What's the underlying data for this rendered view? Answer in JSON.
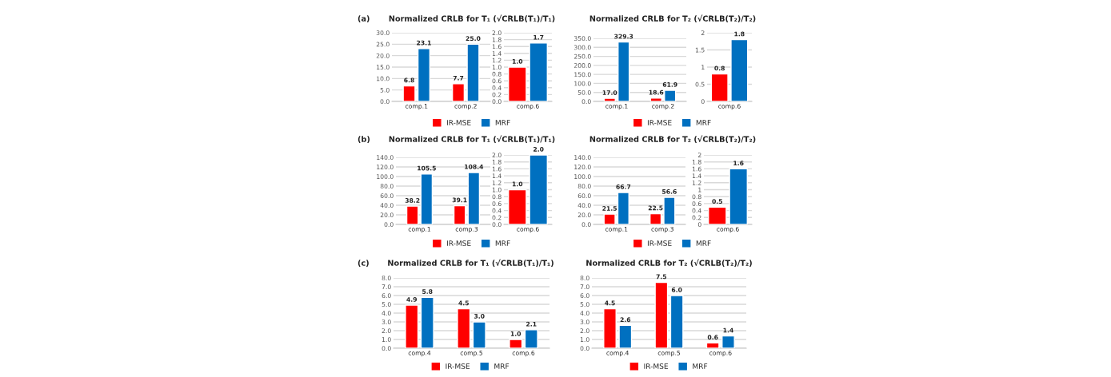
{
  "chart_data": [
    {
      "type": "bar",
      "title": "Normalized CRLB for T₁ (√CRLB(T₁)/T₁)",
      "annotations": [
        "(a)"
      ],
      "categories": [
        "comp.1",
        "comp.2"
      ],
      "series": [
        {
          "name": "IR-MSE",
          "color": "#ff0000",
          "values": [
            6.8,
            7.7
          ],
          "value_labels": [
            "6.8",
            "7.7"
          ]
        },
        {
          "name": "MRF",
          "color": "#0070c0",
          "values": [
            23.1,
            25
          ],
          "value_labels": [
            "23.1",
            "25.0"
          ]
        }
      ],
      "ylim": [
        0,
        30
      ],
      "yticks": [
        {
          "value": 0,
          "label": "0.0"
        },
        {
          "value": 5,
          "label": "5.0"
        },
        {
          "value": 10,
          "label": "10.0"
        },
        {
          "value": 15,
          "label": "15.0"
        },
        {
          "value": 20,
          "label": "20.0"
        },
        {
          "value": 25,
          "label": "25.0"
        },
        {
          "value": 30,
          "label": "30.0"
        }
      ],
      "grid": "y",
      "legend": "bottom"
    },
    {
      "type": "bar",
      "categories": [
        "comp.6"
      ],
      "series": [
        {
          "color": "#ff0000",
          "values": [
            1
          ],
          "value_labels": [
            "1.0"
          ]
        },
        {
          "color": "#0070c0",
          "values": [
            1.7
          ],
          "value_labels": [
            "1.7"
          ]
        }
      ],
      "ylim": [
        0,
        2
      ],
      "yticks": [
        {
          "value": 0,
          "label": "0.0"
        },
        {
          "value": 0.2,
          "label": "0.2"
        },
        {
          "value": 0.4,
          "label": "0.4"
        },
        {
          "value": 0.6,
          "label": "0.6"
        },
        {
          "value": 0.8,
          "label": "0.8"
        },
        {
          "value": 1,
          "label": "1.0"
        },
        {
          "value": 1.2,
          "label": "1.2"
        },
        {
          "value": 1.4,
          "label": "1.4"
        },
        {
          "value": 1.6,
          "label": "1.6"
        },
        {
          "value": 1.8,
          "label": "1.8"
        },
        {
          "value": 2,
          "label": "2.0"
        }
      ],
      "grid": "y"
    },
    {
      "type": "bar",
      "title": "Normalized CRLB for T₂ (√CRLB(T₂)/T₂)",
      "categories": [
        "comp.1",
        "comp.2"
      ],
      "series": [
        {
          "name": "IR-MSE",
          "color": "#ff0000",
          "values": [
            17,
            18.6
          ],
          "value_labels": [
            "17.0",
            "18.6"
          ]
        },
        {
          "name": "MRF",
          "color": "#0070c0",
          "values": [
            329.3,
            61.9
          ],
          "value_labels": [
            "329.3",
            "61.9"
          ]
        }
      ],
      "ylim": [
        0,
        350
      ],
      "yticks": [
        {
          "value": 0,
          "label": "0.0"
        },
        {
          "value": 50,
          "label": "50.0"
        },
        {
          "value": 100,
          "label": "100.0"
        },
        {
          "value": 150,
          "label": "150.0"
        },
        {
          "value": 200,
          "label": "200.0"
        },
        {
          "value": 250,
          "label": "250.0"
        },
        {
          "value": 300,
          "label": "300.0"
        },
        {
          "value": 350,
          "label": "350.0"
        }
      ],
      "grid": "y",
      "legend": "bottom"
    },
    {
      "type": "bar",
      "categories": [
        "comp.6"
      ],
      "series": [
        {
          "color": "#ff0000",
          "values": [
            0.8
          ],
          "value_labels": [
            "0.8"
          ]
        },
        {
          "color": "#0070c0",
          "values": [
            1.8
          ],
          "value_labels": [
            "1.8"
          ]
        }
      ],
      "ylim": [
        0,
        2
      ],
      "yticks": [
        0,
        0.5,
        1,
        1.5,
        2
      ],
      "grid": "y"
    },
    {
      "type": "bar",
      "title": "Normalized CRLB for T₁ (√CRLB(T₁)/T₁)",
      "annotations": [
        "(b)"
      ],
      "categories": [
        "comp.1",
        "comp.3"
      ],
      "series": [
        {
          "name": "IR-MSE",
          "color": "#ff0000",
          "values": [
            38.2,
            39.1
          ],
          "value_labels": [
            "38.2",
            "39.1"
          ]
        },
        {
          "name": "MRF",
          "color": "#0070c0",
          "values": [
            105.5,
            108.4
          ],
          "value_labels": [
            "105.5",
            "108.4"
          ]
        }
      ],
      "ylim": [
        0,
        140
      ],
      "yticks": [
        {
          "value": 0,
          "label": "0.0"
        },
        {
          "value": 20,
          "label": "20.0"
        },
        {
          "value": 40,
          "label": "40.0"
        },
        {
          "value": 60,
          "label": "60.0"
        },
        {
          "value": 80,
          "label": "80.0"
        },
        {
          "value": 100,
          "label": "100.0"
        },
        {
          "value": 120,
          "label": "120.0"
        },
        {
          "value": 140,
          "label": "140.0"
        }
      ],
      "grid": "y",
      "legend": "bottom"
    },
    {
      "type": "bar",
      "categories": [
        "comp.6"
      ],
      "series": [
        {
          "color": "#ff0000",
          "values": [
            1
          ],
          "value_labels": [
            "1.0"
          ]
        },
        {
          "color": "#0070c0",
          "values": [
            2
          ],
          "value_labels": [
            "2.0"
          ]
        }
      ],
      "ylim": [
        0,
        2
      ],
      "yticks": [
        {
          "value": 0,
          "label": "0.0"
        },
        {
          "value": 0.2,
          "label": "0.2"
        },
        {
          "value": 0.4,
          "label": "0.4"
        },
        {
          "value": 0.6,
          "label": "0.6"
        },
        {
          "value": 0.8,
          "label": "0.8"
        },
        {
          "value": 1,
          "label": "1.0"
        },
        {
          "value": 1.2,
          "label": "1.2"
        },
        {
          "value": 1.4,
          "label": "1.4"
        },
        {
          "value": 1.6,
          "label": "1.6"
        },
        {
          "value": 1.8,
          "label": "1.8"
        },
        {
          "value": 2,
          "label": "2.0"
        }
      ],
      "grid": "y"
    },
    {
      "type": "bar",
      "title": "Normalized CRLB for T₂ (√CRLB(T₂)/T₂)",
      "categories": [
        "comp.1",
        "comp.3"
      ],
      "series": [
        {
          "name": "IR-MSE",
          "color": "#ff0000",
          "values": [
            21.5,
            22.5
          ],
          "value_labels": [
            "21.5",
            "22.5"
          ]
        },
        {
          "name": "MRF",
          "color": "#0070c0",
          "values": [
            66.7,
            56.6
          ],
          "value_labels": [
            "66.7",
            "56.6"
          ]
        }
      ],
      "ylim": [
        0,
        140
      ],
      "yticks": [
        {
          "value": 0,
          "label": "0.0"
        },
        {
          "value": 20,
          "label": "20.0"
        },
        {
          "value": 40,
          "label": "40.0"
        },
        {
          "value": 60,
          "label": "60.0"
        },
        {
          "value": 80,
          "label": "80.0"
        },
        {
          "value": 100,
          "label": "100.0"
        },
        {
          "value": 120,
          "label": "120.0"
        },
        {
          "value": 140,
          "label": "140.0"
        }
      ],
      "grid": "y",
      "legend": "bottom"
    },
    {
      "type": "bar",
      "categories": [
        "comp.6"
      ],
      "series": [
        {
          "color": "#ff0000",
          "values": [
            0.5
          ],
          "value_labels": [
            "0.5"
          ]
        },
        {
          "color": "#0070c0",
          "values": [
            1.6
          ],
          "value_labels": [
            "1.6"
          ]
        }
      ],
      "ylim": [
        0,
        2
      ],
      "yticks": [
        0,
        0.2,
        0.4,
        0.6,
        0.8,
        1,
        1.2,
        1.4,
        1.6,
        1.8,
        2
      ],
      "grid": "y"
    },
    {
      "type": "bar",
      "title": "Normalized CRLB for T₁ (√CRLB(T₁)/T₁)",
      "annotations": [
        "(c)"
      ],
      "categories": [
        "comp.4",
        "comp.5",
        "comp.6"
      ],
      "series": [
        {
          "name": "IR-MSE",
          "color": "#ff0000",
          "values": [
            4.9,
            4.5,
            1
          ],
          "value_labels": [
            "4.9",
            "4.5",
            "1.0"
          ]
        },
        {
          "name": "MRF",
          "color": "#0070c0",
          "values": [
            5.8,
            3,
            2.1
          ],
          "value_labels": [
            "5.8",
            "3.0",
            "2.1"
          ]
        }
      ],
      "ylim": [
        0,
        8
      ],
      "yticks": [
        {
          "value": 0,
          "label": "0.0"
        },
        {
          "value": 1,
          "label": "1.0"
        },
        {
          "value": 2,
          "label": "2.0"
        },
        {
          "value": 3,
          "label": "3.0"
        },
        {
          "value": 4,
          "label": "4.0"
        },
        {
          "value": 5,
          "label": "5.0"
        },
        {
          "value": 6,
          "label": "6.0"
        },
        {
          "value": 7,
          "label": "7.0"
        },
        {
          "value": 8,
          "label": "8.0"
        }
      ],
      "grid": "y",
      "legend": "bottom"
    },
    {
      "type": "bar",
      "title": "Normalized CRLB for T₂ (√CRLB(T₂)/T₂)",
      "categories": [
        "comp.4",
        "comp.5",
        "comp.6"
      ],
      "series": [
        {
          "name": "IR-MSE",
          "color": "#ff0000",
          "values": [
            4.5,
            7.5,
            0.6
          ],
          "value_labels": [
            "4.5",
            "7.5",
            "0.6"
          ]
        },
        {
          "name": "MRF",
          "color": "#0070c0",
          "values": [
            2.6,
            6,
            1.4
          ],
          "value_labels": [
            "2.6",
            "6.0",
            "1.4"
          ]
        }
      ],
      "ylim": [
        0,
        8
      ],
      "yticks": [
        {
          "value": 0,
          "label": "0.0"
        },
        {
          "value": 1,
          "label": "1.0"
        },
        {
          "value": 2,
          "label": "2.0"
        },
        {
          "value": 3,
          "label": "3.0"
        },
        {
          "value": 4,
          "label": "4.0"
        },
        {
          "value": 5,
          "label": "5.0"
        },
        {
          "value": 6,
          "label": "6.0"
        },
        {
          "value": 7,
          "label": "7.0"
        },
        {
          "value": 8,
          "label": "8.0"
        }
      ],
      "grid": "y",
      "legend": "bottom"
    }
  ]
}
